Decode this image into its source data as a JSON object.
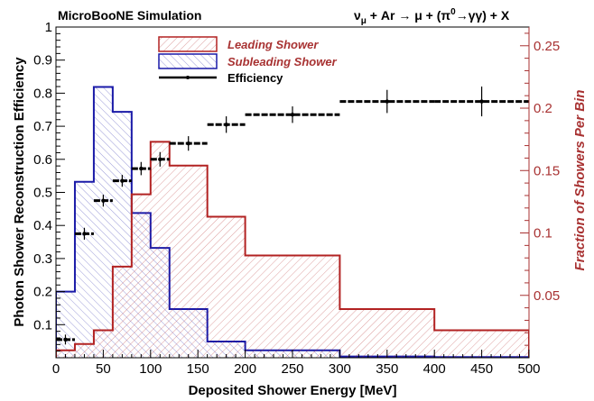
{
  "chart_data": {
    "type": "histogram-with-efficiency",
    "title_left": "MicroBooNE Simulation",
    "title_right": "ν_μ + Ar → μ + (π⁰→γγ) + X",
    "title_right_parts": {
      "nu": "ν",
      "nu_sub": "μ",
      "plus_ar": " + Ar ",
      "arrow": "→",
      "mu": " μ + (π",
      "pi_sup": "0",
      "arrow2": "→γγ) + X"
    },
    "xlabel": "Deposited Shower Energy [MeV]",
    "ylabel_left": "Photon Shower Reconstruction Efficiency",
    "ylabel_right": "Fraction of Showers Per Bin",
    "xlim": [
      0,
      500
    ],
    "ylim_left": [
      0,
      1
    ],
    "ylim_right": [
      0,
      0.265
    ],
    "x_ticks": [
      0,
      50,
      100,
      150,
      200,
      250,
      300,
      350,
      400,
      450,
      500
    ],
    "y_left_ticks": [
      0.1,
      0.2,
      0.3,
      0.4,
      0.5,
      0.6,
      0.7,
      0.8,
      0.9,
      1
    ],
    "y_left_tick_labels": [
      "0.1",
      "0.2",
      "0.3",
      "0.4",
      "0.5",
      "0.6",
      "0.7",
      "0.8",
      "0.9",
      "1"
    ],
    "y_right_ticks": [
      0.05,
      0.1,
      0.15,
      0.2,
      0.25
    ],
    "y_right_tick_labels": [
      "0.05",
      "0.1",
      "0.15",
      "0.2",
      "0.25"
    ],
    "legend": [
      {
        "label": "Leading Shower",
        "key": "leading"
      },
      {
        "label": "Subleading Shower",
        "key": "subleading"
      },
      {
        "label": "Efficiency",
        "key": "efficiency"
      }
    ],
    "bin_edges": [
      0,
      20,
      40,
      60,
      80,
      100,
      120,
      160,
      200,
      300,
      400,
      500
    ],
    "leading_fraction": [
      0.006,
      0.011,
      0.022,
      0.073,
      0.131,
      0.173,
      0.154,
      0.113,
      0.082,
      0.039,
      0.022
    ],
    "subleading_fraction": [
      0.053,
      0.141,
      0.217,
      0.197,
      0.116,
      0.088,
      0.039,
      0.013,
      0.006,
      0.001,
      0.0005
    ],
    "efficiency": [
      {
        "x": 10,
        "xerr": 10,
        "y": 0.055,
        "yerr": 0.015
      },
      {
        "x": 30,
        "xerr": 10,
        "y": 0.375,
        "yerr": 0.018
      },
      {
        "x": 50,
        "xerr": 10,
        "y": 0.475,
        "yerr": 0.018
      },
      {
        "x": 70,
        "xerr": 10,
        "y": 0.535,
        "yerr": 0.018
      },
      {
        "x": 90,
        "xerr": 10,
        "y": 0.572,
        "yerr": 0.02
      },
      {
        "x": 110,
        "xerr": 10,
        "y": 0.6,
        "yerr": 0.022
      },
      {
        "x": 140,
        "xerr": 20,
        "y": 0.648,
        "yerr": 0.022
      },
      {
        "x": 180,
        "xerr": 20,
        "y": 0.705,
        "yerr": 0.025
      },
      {
        "x": 250,
        "xerr": 50,
        "y": 0.735,
        "yerr": 0.025
      },
      {
        "x": 350,
        "xerr": 50,
        "y": 0.775,
        "yerr": 0.035
      },
      {
        "x": 450,
        "xerr": 50,
        "y": 0.775,
        "yerr": 0.045
      }
    ],
    "colors": {
      "leading": "#b22222",
      "subleading": "#1a1aa8",
      "efficiency": "#000000",
      "right_axis": "#a83232",
      "legend_text": "#a83232"
    }
  }
}
